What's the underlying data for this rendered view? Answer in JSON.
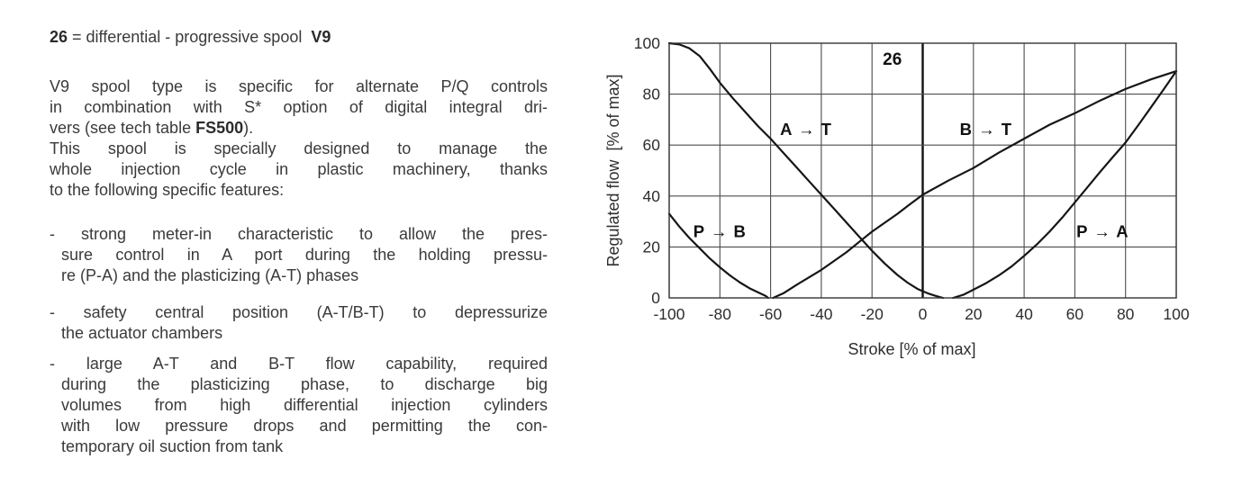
{
  "left": {
    "title": {
      "num": "26",
      "mid": " = differential - progressive spool  ",
      "bold": "V9"
    },
    "p1": {
      "l1": "V9 spool type is specific for alternate P/Q controls",
      "l2": "in combination with S* option of digital integral dri-",
      "l3a": "vers (see tech table ",
      "l3b": "FS500",
      "l3c": ").",
      "l4": "This spool is specially designed to manage the",
      "l5": "whole injection cycle in plastic machinery, thanks",
      "l6": "to the following specific features:"
    },
    "b1": {
      "l1": "- strong meter-in characteristic to allow the pres-",
      "l2": "sure control in A port during the holding pressu-",
      "l3": "re (P-A) and the plasticizing (A-T) phases"
    },
    "b2": {
      "l1": "- safety central position (A-T/B-T) to depressurize",
      "l2": "the actuator chambers"
    },
    "b3": {
      "l1": "- large A-T and B-T flow capability, required",
      "l2": "during the plasticizing phase, to discharge big",
      "l3": "volumes from high differential injection cylinders",
      "l4": "with low pressure drops and permitting the con-",
      "l5": "temporary oil suction from tank"
    }
  },
  "chart_data": {
    "type": "line",
    "annotation": {
      "text": "26",
      "x": -12,
      "y": 94
    },
    "xlabel": "Stroke [% of max]",
    "ylabel": "Regulated flow  [% of max]",
    "xlim": [
      -100,
      100
    ],
    "ylim": [
      0,
      100
    ],
    "x_ticks": [
      -100,
      -80,
      -60,
      -40,
      -20,
      0,
      20,
      40,
      60,
      80,
      100
    ],
    "y_ticks": [
      0,
      20,
      40,
      60,
      80,
      100
    ],
    "grid": "on",
    "zero_axis": "vertical line at x=0 emphasized",
    "legend_position": "inline-labels",
    "colors": {
      "curve": "#161616",
      "grid": "#4c4c4c",
      "zero_axis": "#111111",
      "frame": "#333333"
    },
    "series": [
      {
        "name": "A → T",
        "label_x": -46,
        "label_y": 66,
        "points": [
          [
            -100,
            100
          ],
          [
            -96,
            99.5
          ],
          [
            -92,
            98
          ],
          [
            -88,
            95
          ],
          [
            -84,
            90
          ],
          [
            -80,
            84.5
          ],
          [
            -75,
            78.5
          ],
          [
            -70,
            73
          ],
          [
            -65,
            67.5
          ],
          [
            -60,
            62.5
          ],
          [
            -55,
            57
          ],
          [
            -50,
            51.5
          ],
          [
            -45,
            46
          ],
          [
            -40,
            40.5
          ],
          [
            -35,
            35
          ],
          [
            -30,
            29.5
          ],
          [
            -25,
            24
          ],
          [
            -20,
            18.5
          ],
          [
            -15,
            13.5
          ],
          [
            -10,
            9
          ],
          [
            -6,
            6
          ],
          [
            -2,
            3.5
          ],
          [
            2,
            1.8
          ],
          [
            5,
            0.8
          ],
          [
            8,
            0
          ]
        ]
      },
      {
        "name": "P → B",
        "label_x": -80,
        "label_y": 26,
        "points": [
          [
            -100,
            33
          ],
          [
            -96,
            28
          ],
          [
            -92,
            23.5
          ],
          [
            -88,
            19.5
          ],
          [
            -84,
            15.5
          ],
          [
            -80,
            12
          ],
          [
            -76,
            8.8
          ],
          [
            -72,
            6
          ],
          [
            -68,
            3.6
          ],
          [
            -65,
            2.2
          ],
          [
            -62,
            0.8
          ],
          [
            -61,
            0
          ]
        ]
      },
      {
        "name": "B → T",
        "label_x": 25,
        "label_y": 66,
        "points": [
          [
            -59,
            0
          ],
          [
            -55,
            1.8
          ],
          [
            -50,
            5
          ],
          [
            -45,
            8
          ],
          [
            -40,
            11
          ],
          [
            -35,
            14.5
          ],
          [
            -30,
            18
          ],
          [
            -25,
            22
          ],
          [
            -20,
            26
          ],
          [
            -15,
            29.5
          ],
          [
            -10,
            33
          ],
          [
            -5,
            36.8
          ],
          [
            0,
            40.5
          ],
          [
            10,
            46
          ],
          [
            20,
            51
          ],
          [
            30,
            57
          ],
          [
            40,
            62.5
          ],
          [
            50,
            68
          ],
          [
            60,
            72.5
          ],
          [
            70,
            77.5
          ],
          [
            80,
            82
          ],
          [
            90,
            85.8
          ],
          [
            100,
            89
          ]
        ]
      },
      {
        "name": "P → A",
        "label_x": 71,
        "label_y": 26,
        "points": [
          [
            12,
            0
          ],
          [
            16,
            1.2
          ],
          [
            20,
            3.2
          ],
          [
            25,
            5.8
          ],
          [
            30,
            8.8
          ],
          [
            35,
            12.3
          ],
          [
            40,
            16.5
          ],
          [
            45,
            21
          ],
          [
            50,
            26
          ],
          [
            55,
            31.5
          ],
          [
            60,
            37.5
          ],
          [
            65,
            43.5
          ],
          [
            70,
            49.5
          ],
          [
            75,
            55.3
          ],
          [
            80,
            61
          ],
          [
            85,
            67.8
          ],
          [
            90,
            74.8
          ],
          [
            95,
            81.8
          ],
          [
            100,
            89
          ]
        ]
      }
    ]
  }
}
